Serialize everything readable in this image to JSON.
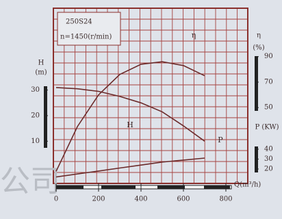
{
  "chart_data": {
    "type": "line",
    "title": "250S24",
    "subtitle": "n=1450(r/min)",
    "x_label": "Q(m³/h)",
    "y_label": {
      "name": "H",
      "unit": "(m)"
    },
    "y2_label": {
      "name": "η",
      "unit": "(%)"
    },
    "y3_label": "P (KW)",
    "watermark": "公司",
    "x": [
      0,
      100,
      200,
      300,
      400,
      500,
      600,
      700
    ],
    "xlim": [
      0,
      900
    ],
    "xticks": [
      0,
      200,
      400,
      600,
      800
    ],
    "ylim": [
      -6.5,
      62
    ],
    "yticks": [
      10,
      20,
      30
    ],
    "y2lim": [
      -9.5,
      128
    ],
    "y2ticks": [
      50,
      70,
      90
    ],
    "y3lim": [
      5.5,
      182
    ],
    "y3ticks": [
      20,
      30,
      40
    ],
    "grid": true,
    "series": [
      {
        "name": "H",
        "color": "#6b2a2a",
        "values": [
          31,
          30.5,
          29.5,
          27.5,
          25,
          21.5,
          16,
          10
        ]
      },
      {
        "name": "η",
        "axis": "y2",
        "color": "#6b2a2a",
        "values": [
          0,
          35,
          60,
          76,
          84,
          86,
          83,
          75
        ]
      },
      {
        "name": "P",
        "axis": "y3",
        "color": "#6b2a2a",
        "values": [
          12,
          15,
          18,
          21,
          24,
          27,
          29,
          31
        ]
      }
    ]
  }
}
